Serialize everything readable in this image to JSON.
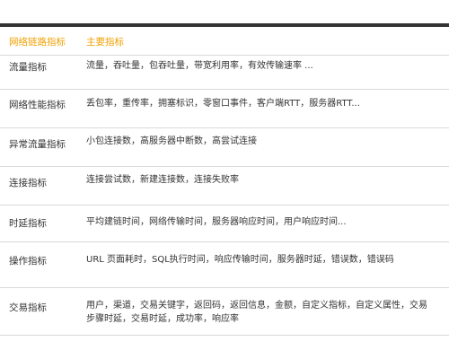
{
  "header": {
    "col1": "网络链路指标",
    "col2": "主要指标"
  },
  "rows": [
    {
      "name": "流量指标",
      "desc": "流量，吞吐量，包吞吐量，带宽利用率，有效传输速率 ..."
    },
    {
      "name": "网络性能指标",
      "desc": "丢包率，重传率，拥塞标识，零窗口事件，客户端RTT，服务器RTT..."
    },
    {
      "name": "异常流量指标",
      "desc": "小包连接数，高服务器中断数，高尝试连接"
    },
    {
      "name": "连接指标",
      "desc": "连接尝试数，新建连接数，连接失败率"
    },
    {
      "name": "时延指标",
      "desc": "平均建链时间，网络传输时间，服务器响应时间，用户响应时间..."
    },
    {
      "name": "操作指标",
      "desc": "URL 页面耗时，SQL执行时间，响应传输时间，服务器时延，错误数，错误码"
    },
    {
      "name": "交易指标",
      "desc": "用户，渠道，交易关键字，返回码，返回信息，金额，自定义指标，自定义属性，交易步骤时延，交易时延，成功率，响应率"
    }
  ]
}
